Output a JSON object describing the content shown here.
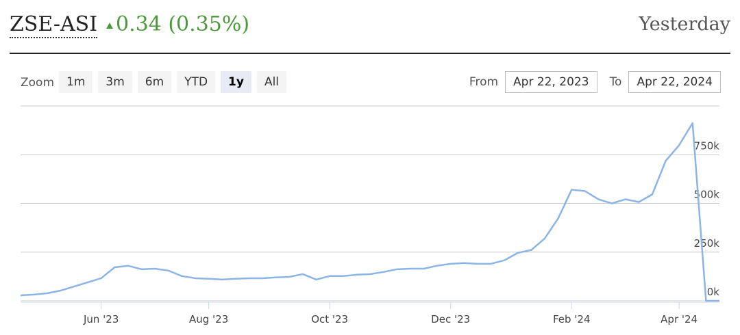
{
  "header": {
    "symbol": "ZSE-ASI",
    "change": "0.34 (0.35%)",
    "period": "Yesterday"
  },
  "controls": {
    "zoom_label": "Zoom",
    "zoom_buttons": [
      "1m",
      "3m",
      "6m",
      "YTD",
      "1y",
      "All"
    ],
    "selected": "1y",
    "from_label": "From",
    "from": "Apr 22, 2023",
    "to_label": "To",
    "to": "Apr 22, 2024"
  },
  "chart_data": {
    "type": "line",
    "categories": [
      null,
      null,
      null,
      null,
      null,
      null,
      "Jun '23",
      null,
      null,
      null,
      null,
      null,
      null,
      null,
      "Aug '23",
      null,
      null,
      null,
      null,
      null,
      null,
      null,
      null,
      "Oct '23",
      null,
      null,
      null,
      null,
      null,
      null,
      null,
      null,
      "Dec '23",
      null,
      null,
      null,
      null,
      null,
      null,
      null,
      null,
      "Feb '24",
      null,
      null,
      null,
      null,
      null,
      null,
      null,
      "Apr '24",
      null,
      null,
      null
    ],
    "values": [
      28000,
      32000,
      39000,
      53000,
      74000,
      95000,
      116000,
      172000,
      180000,
      162000,
      165000,
      155000,
      127000,
      116000,
      113000,
      109000,
      113000,
      116000,
      116000,
      120000,
      123000,
      137000,
      109000,
      127000,
      127000,
      134000,
      137000,
      148000,
      162000,
      165000,
      165000,
      180000,
      190000,
      194000,
      190000,
      190000,
      208000,
      246000,
      261000,
      320000,
      423000,
      570000,
      563000,
      521000,
      500000,
      521000,
      507000,
      546000,
      718000,
      799000,
      912000,
      0,
      0
    ],
    "color": "#8cb4e4",
    "ylim": [
      0,
      1000000
    ],
    "yticks": [
      {
        "value": 0,
        "label": "0k"
      },
      {
        "value": 250000,
        "label": "250k"
      },
      {
        "value": 500000,
        "label": "500k"
      },
      {
        "value": 750000,
        "label": "750k"
      }
    ],
    "grid": true
  }
}
